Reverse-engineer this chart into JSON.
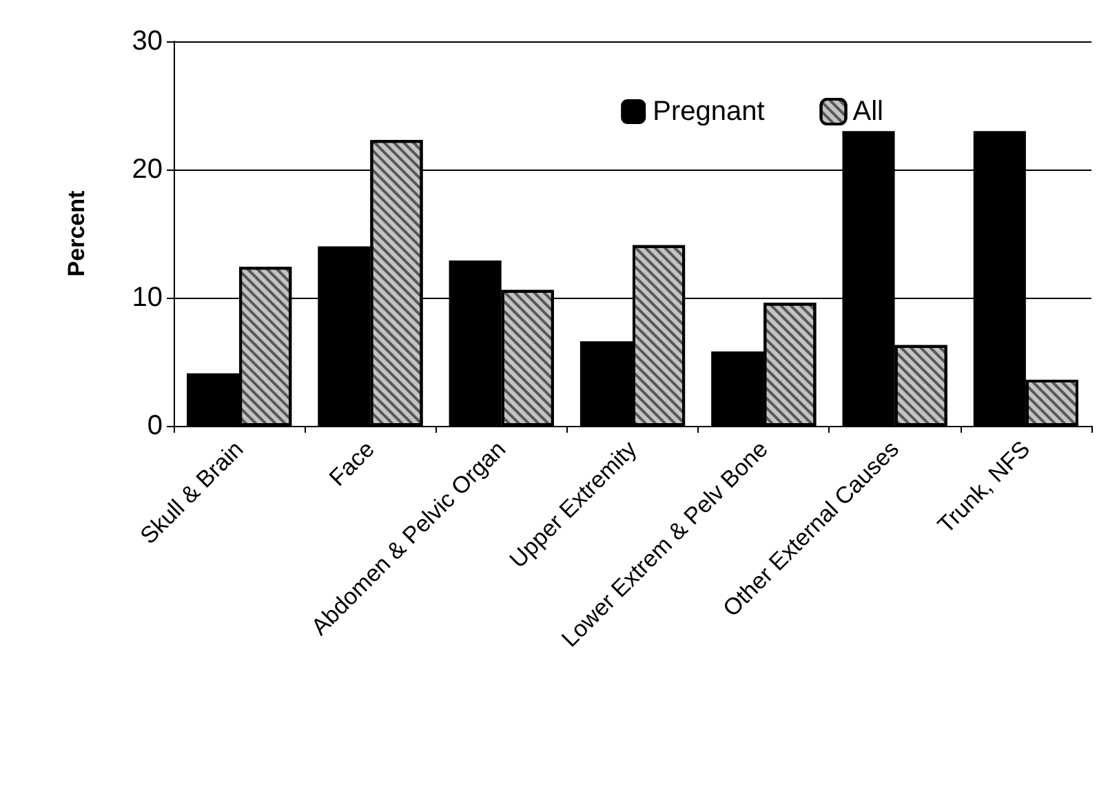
{
  "chart_data": {
    "type": "bar",
    "ylabel": "Percent",
    "categories": [
      "Skull & Brain",
      "Face",
      "Abdomen & Pelvic Organ",
      "Upper Extremity",
      "Lower Extrem & Pelv Bone",
      "Other External Causes",
      "Trunk, NFS"
    ],
    "series": [
      {
        "name": "Pregnant",
        "color": "#000000",
        "values": [
          4.1,
          14.0,
          12.9,
          6.6,
          5.8,
          23.0,
          23.0
        ]
      },
      {
        "name": "All",
        "color": "#c4c4c4",
        "values": [
          12.4,
          22.3,
          10.6,
          14.1,
          9.6,
          6.3,
          3.6
        ]
      }
    ],
    "ylim": [
      0,
      30
    ],
    "yticks": [
      0,
      10,
      20,
      30
    ],
    "grid": "y",
    "legend": "top right"
  }
}
